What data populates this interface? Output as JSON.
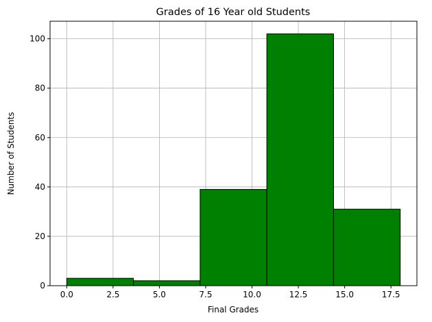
{
  "chart_data": {
    "type": "bar",
    "title": "Grades of 16 Year old Students",
    "xlabel": "Final Grades",
    "ylabel": "Number of Students",
    "bins": [
      {
        "start": 0.0,
        "end": 3.6,
        "value": 3
      },
      {
        "start": 3.6,
        "end": 7.2,
        "value": 2
      },
      {
        "start": 7.2,
        "end": 10.8,
        "value": 39
      },
      {
        "start": 10.8,
        "end": 14.4,
        "value": 102
      },
      {
        "start": 14.4,
        "end": 18.0,
        "value": 31
      }
    ],
    "xlim": [
      -0.9,
      18.9
    ],
    "ylim": [
      0,
      107.1
    ],
    "xticks": [
      0.0,
      2.5,
      5.0,
      7.5,
      10.0,
      12.5,
      15.0,
      17.5
    ],
    "xtick_labels": [
      "0.0",
      "2.5",
      "5.0",
      "7.5",
      "10.0",
      "12.5",
      "15.0",
      "17.5"
    ],
    "yticks": [
      0,
      20,
      40,
      60,
      80,
      100
    ],
    "ytick_labels": [
      "0",
      "20",
      "40",
      "60",
      "80",
      "100"
    ],
    "grid": true,
    "bar_color": "#008000",
    "edge_color": "#000000",
    "grid_color": "#b0b0b0"
  }
}
